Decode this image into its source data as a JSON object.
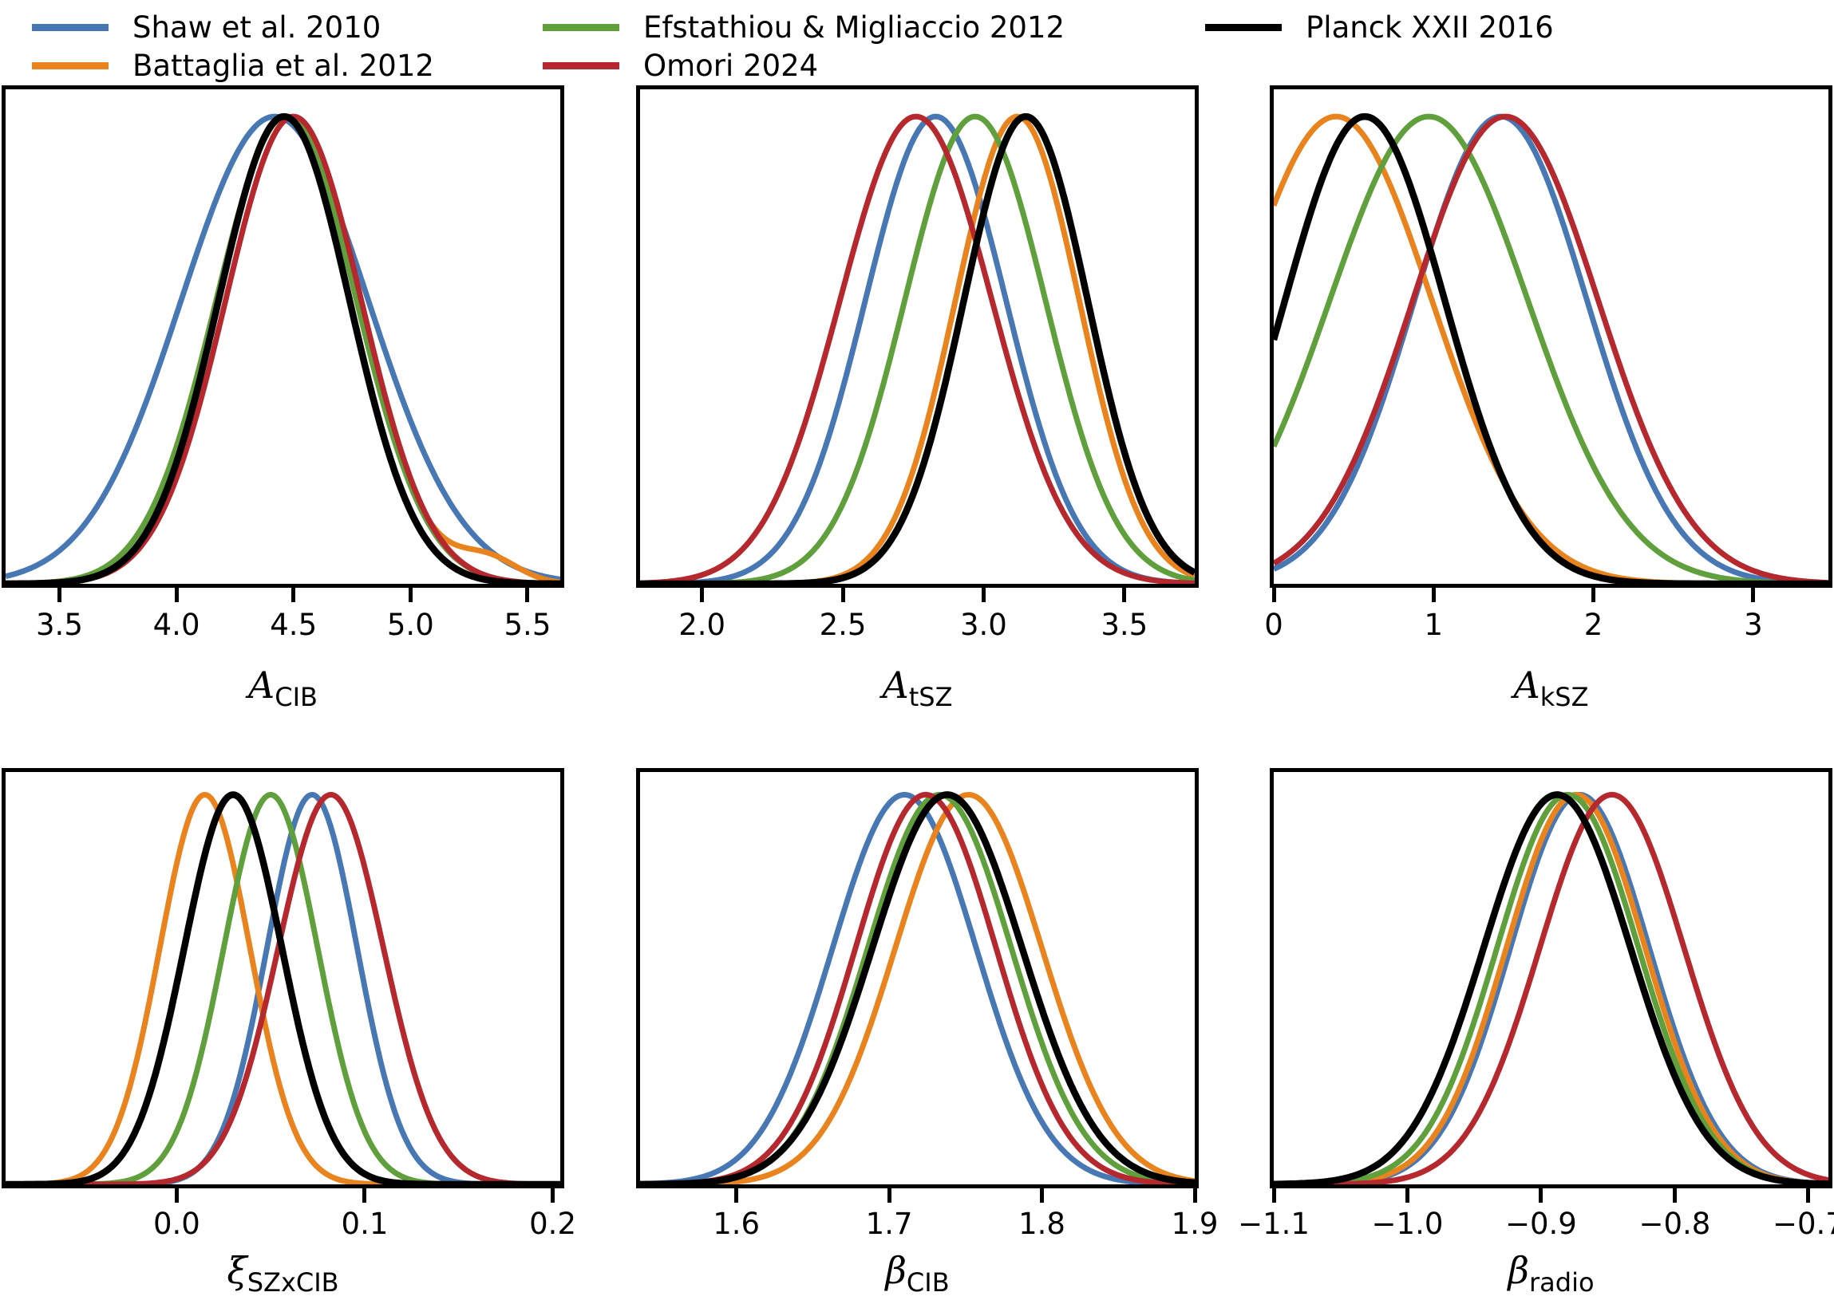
{
  "figure": {
    "description": "Six 1D marginalized posterior probability panels comparing tSZ templates",
    "background": "#ffffff"
  },
  "legend": {
    "entries": [
      {
        "label": "Shaw et al. 2010",
        "color": "#4878B4"
      },
      {
        "label": "Battaglia et al. 2012",
        "color": "#E8831E"
      },
      {
        "label": "Efstathiou & Migliaccio 2012",
        "color": "#5FA03C"
      },
      {
        "label": "Omori 2024",
        "color": "#B5282E"
      },
      {
        "label": "Planck XXII 2016",
        "color": "#000000"
      }
    ]
  },
  "chart_data": [
    {
      "type": "line",
      "title": "",
      "xlabel": {
        "main": "A",
        "sub": "CIB"
      },
      "ylabel": "normalized posterior density (unlabeled axis)",
      "xlim": [
        3.27,
        5.64
      ],
      "grid": false,
      "ticks": [
        {
          "x": 3.5,
          "label": "3.5"
        },
        {
          "x": 4.0,
          "label": "4.0"
        },
        {
          "x": 4.5,
          "label": "4.5"
        },
        {
          "x": 5.0,
          "label": "5.0"
        },
        {
          "x": 5.5,
          "label": "5.5"
        }
      ],
      "series": [
        {
          "name": "Shaw et al. 2010",
          "color": "#4878B4",
          "mean": 4.42,
          "sigma": 0.4,
          "lw": 7
        },
        {
          "name": "Battaglia et al. 2012",
          "color": "#E8831E",
          "mean": 4.47,
          "sigma": 0.3,
          "lw": 7,
          "bump": {
            "mean": 5.33,
            "sigma": 0.13,
            "amp": 0.05
          }
        },
        {
          "name": "Efstathiou & Migliaccio 2012",
          "color": "#5FA03C",
          "mean": 4.47,
          "sigma": 0.3,
          "lw": 7
        },
        {
          "name": "Omori 2024",
          "color": "#B5282E",
          "mean": 4.5,
          "sigma": 0.29,
          "lw": 7
        },
        {
          "name": "Planck XXII 2016",
          "color": "#000000",
          "mean": 4.46,
          "sigma": 0.28,
          "lw": 8.5
        }
      ]
    },
    {
      "type": "line",
      "title": "",
      "xlabel": {
        "main": "A",
        "sub": "tSZ"
      },
      "ylabel": "normalized posterior density (unlabeled axis)",
      "xlim": [
        1.78,
        3.75
      ],
      "grid": false,
      "ticks": [
        {
          "x": 2.0,
          "label": "2.0"
        },
        {
          "x": 2.5,
          "label": "2.5"
        },
        {
          "x": 3.0,
          "label": "3.0"
        },
        {
          "x": 3.5,
          "label": "3.5"
        }
      ],
      "series": [
        {
          "name": "Shaw et al. 2010",
          "color": "#4878B4",
          "mean": 2.83,
          "sigma": 0.25,
          "lw": 7
        },
        {
          "name": "Battaglia et al. 2012",
          "color": "#E8831E",
          "mean": 3.12,
          "sigma": 0.22,
          "lw": 7
        },
        {
          "name": "Efstathiou & Migliaccio 2012",
          "color": "#5FA03C",
          "mean": 2.97,
          "sigma": 0.25,
          "lw": 7
        },
        {
          "name": "Omori 2024",
          "color": "#B5282E",
          "mean": 2.76,
          "sigma": 0.27,
          "lw": 7
        },
        {
          "name": "Planck XXII 2016",
          "color": "#000000",
          "mean": 3.15,
          "sigma": 0.22,
          "lw": 8.5
        }
      ]
    },
    {
      "type": "line",
      "title": "",
      "xlabel": {
        "main": "A",
        "sub": "kSZ"
      },
      "ylabel": "normalized posterior density (unlabeled axis)",
      "xlim": [
        0.0,
        3.47
      ],
      "grid": false,
      "ticks": [
        {
          "x": 0,
          "label": "0"
        },
        {
          "x": 1,
          "label": "1"
        },
        {
          "x": 2,
          "label": "2"
        },
        {
          "x": 3,
          "label": "3"
        }
      ],
      "series": [
        {
          "name": "Shaw et al. 2010",
          "color": "#4878B4",
          "mean": 1.42,
          "sigma": 0.54,
          "lw": 7
        },
        {
          "name": "Battaglia et al. 2012",
          "color": "#E8831E",
          "mean": 0.39,
          "sigma": 0.6,
          "lw": 7
        },
        {
          "name": "Efstathiou & Migliaccio 2012",
          "color": "#5FA03C",
          "mean": 0.97,
          "sigma": 0.62,
          "lw": 7
        },
        {
          "name": "Omori 2024",
          "color": "#B5282E",
          "mean": 1.45,
          "sigma": 0.58,
          "lw": 7
        },
        {
          "name": "Planck XXII 2016",
          "color": "#000000",
          "mean": 0.57,
          "sigma": 0.5,
          "lw": 8.5
        }
      ]
    },
    {
      "type": "line",
      "title": "",
      "xlabel": {
        "main": "ξ",
        "sub": "SZxCIB"
      },
      "ylabel": "normalized posterior density (unlabeled axis)",
      "xlim": [
        -0.091,
        0.204
      ],
      "grid": false,
      "ticks": [
        {
          "x": 0.0,
          "label": "0.0"
        },
        {
          "x": 0.1,
          "label": "0.1"
        },
        {
          "x": 0.2,
          "label": "0.2"
        }
      ],
      "series": [
        {
          "name": "Shaw et al. 2010",
          "color": "#4878B4",
          "mean": 0.072,
          "sigma": 0.024,
          "lw": 7
        },
        {
          "name": "Battaglia et al. 2012",
          "color": "#E8831E",
          "mean": 0.015,
          "sigma": 0.024,
          "lw": 7
        },
        {
          "name": "Efstathiou & Migliaccio 2012",
          "color": "#5FA03C",
          "mean": 0.05,
          "sigma": 0.025,
          "lw": 7
        },
        {
          "name": "Omori 2024",
          "color": "#B5282E",
          "mean": 0.082,
          "sigma": 0.028,
          "lw": 7
        },
        {
          "name": "Planck XXII 2016",
          "color": "#000000",
          "mean": 0.03,
          "sigma": 0.026,
          "lw": 8.5
        }
      ]
    },
    {
      "type": "line",
      "title": "",
      "xlabel": {
        "main": "β",
        "sub": "CIB"
      },
      "ylabel": "normalized posterior density (unlabeled axis)",
      "xlim": [
        1.537,
        1.9
      ],
      "grid": false,
      "ticks": [
        {
          "x": 1.6,
          "label": "1.6"
        },
        {
          "x": 1.7,
          "label": "1.7"
        },
        {
          "x": 1.8,
          "label": "1.8"
        },
        {
          "x": 1.9,
          "label": "1.9"
        }
      ],
      "series": [
        {
          "name": "Shaw et al. 2010",
          "color": "#4878B4",
          "mean": 1.71,
          "sigma": 0.047,
          "lw": 7
        },
        {
          "name": "Battaglia et al. 2012",
          "color": "#E8831E",
          "mean": 1.752,
          "sigma": 0.048,
          "lw": 7
        },
        {
          "name": "Efstathiou & Migliaccio 2012",
          "color": "#5FA03C",
          "mean": 1.733,
          "sigma": 0.047,
          "lw": 7
        },
        {
          "name": "Omori 2024",
          "color": "#B5282E",
          "mean": 1.724,
          "sigma": 0.046,
          "lw": 7
        },
        {
          "name": "Planck XXII 2016",
          "color": "#000000",
          "mean": 1.738,
          "sigma": 0.049,
          "lw": 8.5
        }
      ]
    },
    {
      "type": "line",
      "title": "",
      "xlabel": {
        "main": "β",
        "sub": "radio"
      },
      "ylabel": "normalized posterior density (unlabeled axis)",
      "xlim": [
        -1.1,
        -0.685
      ],
      "grid": false,
      "ticks": [
        {
          "x": -1.1,
          "label": "−1.1"
        },
        {
          "x": -1.0,
          "label": "−1.0"
        },
        {
          "x": -0.9,
          "label": "−0.9"
        },
        {
          "x": -0.8,
          "label": "−0.8"
        },
        {
          "x": -0.7,
          "label": "−0.7"
        }
      ],
      "series": [
        {
          "name": "Shaw et al. 2010",
          "color": "#4878B4",
          "mean": -0.871,
          "sigma": 0.052,
          "lw": 7
        },
        {
          "name": "Battaglia et al. 2012",
          "color": "#E8831E",
          "mean": -0.874,
          "sigma": 0.052,
          "lw": 7
        },
        {
          "name": "Efstathiou & Migliaccio 2012",
          "color": "#5FA03C",
          "mean": -0.88,
          "sigma": 0.053,
          "lw": 7
        },
        {
          "name": "Omori 2024",
          "color": "#B5282E",
          "mean": -0.847,
          "sigma": 0.054,
          "lw": 7
        },
        {
          "name": "Planck XXII 2016",
          "color": "#000000",
          "mean": -0.888,
          "sigma": 0.055,
          "lw": 8.5
        }
      ]
    }
  ]
}
